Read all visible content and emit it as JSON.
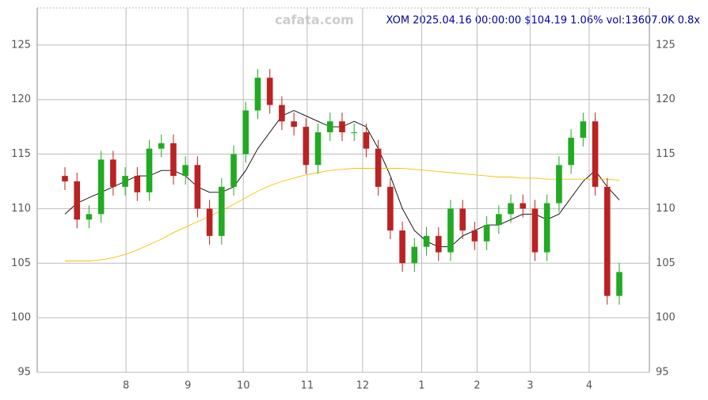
{
  "chart_data": {
    "type": "candlestick",
    "title": "XOM 2025.04.16 00:00:00 $104.19 1.06% vol:13607.0K 0.8x",
    "watermark": "cafata.com",
    "ylim": [
      95,
      128.4
    ],
    "yticks": [
      95,
      100,
      105,
      110,
      115,
      120,
      125
    ],
    "xlim": [
      0,
      46
    ],
    "xticks": [
      {
        "value": 5.07,
        "label": "8"
      },
      {
        "value": 10.2,
        "label": "9"
      },
      {
        "value": 14.8,
        "label": "10"
      },
      {
        "value": 20.1,
        "label": "11"
      },
      {
        "value": 24.7,
        "label": "12"
      },
      {
        "value": 29.6,
        "label": "1"
      },
      {
        "value": 34.2,
        "label": "2"
      },
      {
        "value": 38.6,
        "label": "3"
      },
      {
        "value": 43.5,
        "label": "4"
      }
    ],
    "grid": true,
    "up_color": "#22aa22",
    "down_color": "#bb2222",
    "open": [
      113,
      112.5,
      109,
      109.5,
      114.5,
      112,
      113,
      111.5,
      115.5,
      116,
      113,
      114,
      110,
      107.5,
      112,
      115,
      119,
      122,
      119.5,
      118,
      117.5,
      114,
      117,
      118,
      117,
      117,
      115.5,
      112,
      108,
      105,
      106.5,
      107.5,
      106,
      110,
      108,
      107,
      108.5,
      109.5,
      110.5,
      110,
      106,
      110.5,
      114,
      116.5,
      118,
      112,
      102
    ],
    "high": [
      113.8,
      113.3,
      110.3,
      115.3,
      115.3,
      113.8,
      113.8,
      116.3,
      116.8,
      116.8,
      114.8,
      114.8,
      110.8,
      112.8,
      115.8,
      119.8,
      122.8,
      122.8,
      120.3,
      118.8,
      118.3,
      117.8,
      118.8,
      118.8,
      117.8,
      117.8,
      116.3,
      112.8,
      108.8,
      107.3,
      108.3,
      108.3,
      110.8,
      110.8,
      108.8,
      109.3,
      110.3,
      111.3,
      111.3,
      110.8,
      111.3,
      114.8,
      117.3,
      118.8,
      118.8,
      112.8,
      105
    ],
    "low": [
      111.7,
      108.2,
      108.2,
      108.7,
      111.2,
      111.2,
      110.7,
      110.7,
      114.7,
      112.2,
      112.2,
      109.2,
      106.7,
      106.7,
      111.2,
      114.2,
      118.2,
      118.7,
      117.2,
      116.7,
      113.2,
      113.2,
      116.2,
      116.2,
      116.2,
      114.7,
      111.2,
      107.2,
      104.2,
      104.2,
      105.7,
      105.2,
      105.2,
      107.2,
      106.2,
      106.2,
      107.7,
      108.7,
      109.2,
      105.2,
      105.2,
      109.7,
      113.2,
      115.7,
      111.2,
      101.2,
      101.2
    ],
    "close": [
      112.5,
      109,
      109.5,
      114.5,
      112,
      113,
      111.5,
      115.5,
      116,
      113,
      114,
      110,
      107.5,
      112,
      115,
      119,
      122,
      119.5,
      118,
      117.5,
      114,
      117,
      118,
      117,
      117,
      115.5,
      112,
      108,
      105,
      106.5,
      107.5,
      106,
      110,
      108,
      107,
      108.5,
      109.5,
      110.5,
      110,
      106,
      110.5,
      114,
      116.5,
      118,
      112,
      102,
      104.19
    ],
    "series": [
      {
        "color": "#000000",
        "values": [
          109.5,
          110.5,
          111,
          111.5,
          112,
          112.5,
          113,
          113,
          113.5,
          113.5,
          113,
          112,
          111.5,
          111.5,
          112,
          113.5,
          115.5,
          117,
          118.5,
          119,
          118.5,
          118,
          117.5,
          117.5,
          118,
          117.5,
          115.5,
          113,
          110,
          108,
          107,
          106.5,
          106.5,
          107.5,
          108,
          108.5,
          108.5,
          109,
          109.5,
          109.5,
          109,
          109.5,
          111,
          112.5,
          113.5,
          112,
          110.8
        ]
      },
      {
        "color": "#f5c000",
        "values": [
          105.2,
          105.2,
          105.2,
          105.3,
          105.5,
          105.8,
          106.2,
          106.7,
          107.2,
          107.8,
          108.3,
          108.8,
          109.3,
          109.8,
          110.4,
          111,
          111.6,
          112.1,
          112.5,
          112.8,
          113.1,
          113.3,
          113.5,
          113.6,
          113.7,
          113.7,
          113.7,
          113.7,
          113.7,
          113.6,
          113.5,
          113.4,
          113.3,
          113.2,
          113.1,
          113,
          112.9,
          112.9,
          112.8,
          112.8,
          112.7,
          112.7,
          112.7,
          112.7,
          112.7,
          112.7,
          112.6
        ]
      }
    ]
  }
}
